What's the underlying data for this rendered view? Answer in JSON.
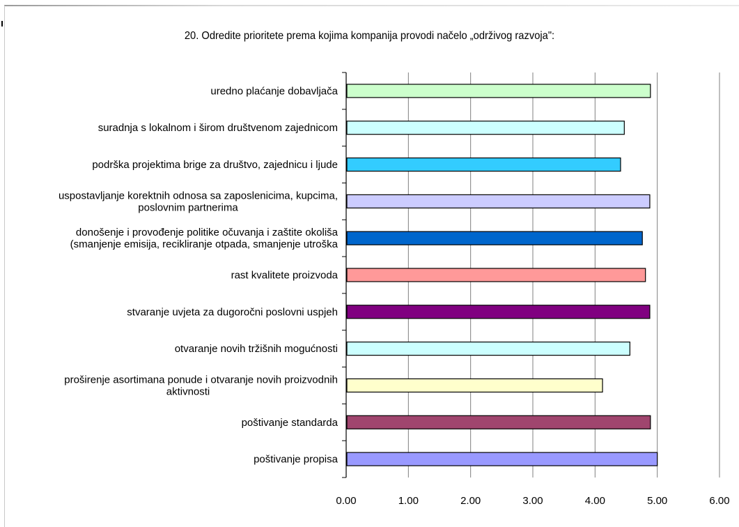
{
  "chart_data": {
    "type": "bar",
    "orientation": "horizontal",
    "title": "20. Odredite prioritete prema kojima kompanija provodi načelo „održivog razvoja\":",
    "xlabel": "",
    "ylabel": "",
    "xlim": [
      0,
      6
    ],
    "x_ticks": [
      "0.00",
      "1.00",
      "2.00",
      "3.00",
      "4.00",
      "5.00",
      "6.00"
    ],
    "grid": "vertical",
    "legend": "none",
    "categories": [
      [
        "uredno plaćanje dobavljača"
      ],
      [
        "suradnja s lokalnom i širom društvenom zajednicom"
      ],
      [
        "podrška projektima brige za društvo, zajednicu i ljude"
      ],
      [
        "uspostavljanje korektnih odnosa sa zaposlenicima, kupcima,",
        "poslovnim partnerima"
      ],
      [
        "donošenje i provođenje politike očuvanja i zaštite okoliša",
        "(smanjenje emisija, recikliranje otpada, smanjenje utroška"
      ],
      [
        "rast kvalitete proizvoda"
      ],
      [
        "stvaranje uvjeta za dugoročni poslovni uspjeh"
      ],
      [
        "otvaranje novih tržišnih mogućnosti"
      ],
      [
        "proširenje asortimana ponude i otvaranje novih proizvodnih",
        "aktivnosti"
      ],
      [
        "poštivanje standarda"
      ],
      [
        "poštivanje propisa"
      ]
    ],
    "values": [
      4.89,
      4.47,
      4.41,
      4.88,
      4.76,
      4.81,
      4.88,
      4.56,
      4.12,
      4.89,
      5.0
    ],
    "colors": [
      "#ccffcc",
      "#ccffff",
      "#33ccff",
      "#ccccff",
      "#0066cc",
      "#ff9999",
      "#800080",
      "#ccffff",
      "#ffffcc",
      "#a0456e",
      "#9999ff"
    ]
  }
}
